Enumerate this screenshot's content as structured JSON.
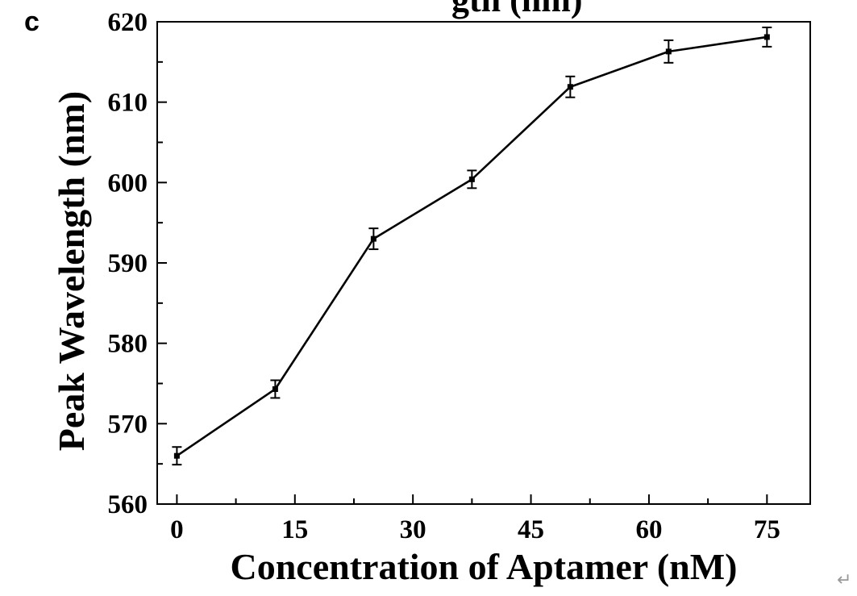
{
  "panel_label": "c",
  "top_clipped_text": "gth (nm)",
  "return_mark": "↵",
  "chart_data": {
    "type": "line",
    "xlabel": "Concentration of Aptamer (nM)",
    "ylabel": "Peak Wavelength (nm)",
    "xlim": [
      -2.5,
      80.5
    ],
    "ylim": [
      560,
      620
    ],
    "xticks": [
      0,
      15,
      30,
      45,
      60,
      75
    ],
    "yticks": [
      560,
      570,
      580,
      590,
      600,
      610,
      620
    ],
    "x_minor_step": 7.5,
    "y_minor_step": 5,
    "grid": false,
    "legend": "none",
    "series": [
      {
        "x": [
          0,
          12.5,
          25,
          37.5,
          50,
          62.5,
          75
        ],
        "y": [
          566.0,
          574.3,
          593.0,
          600.4,
          611.9,
          616.3,
          618.1
        ],
        "yerr": [
          1.1,
          1.1,
          1.3,
          1.1,
          1.3,
          1.4,
          1.2
        ]
      }
    ],
    "colors": {
      "line": "#000000",
      "marker": "#000000"
    }
  }
}
